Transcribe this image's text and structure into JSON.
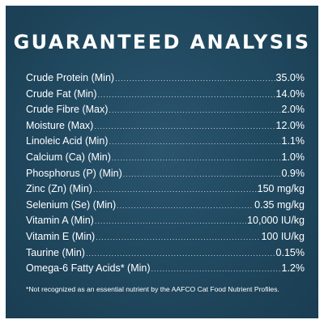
{
  "title": "GUARANTEED ANALYSIS",
  "rows": [
    {
      "label": "Crude Protein (Min)",
      "value": "35.0%"
    },
    {
      "label": "Crude Fat (Min)",
      "value": "14.0%"
    },
    {
      "label": "Crude Fibre (Max)",
      "value": "2.0%"
    },
    {
      "label": "Moisture (Max)",
      "value": "12.0%"
    },
    {
      "label": "Linoleic Acid (Min)",
      "value": "1.1%"
    },
    {
      "label": "Calcium (Ca) (Min)",
      "value": "1.0%"
    },
    {
      "label": "Phosphorus (P) (Min)",
      "value": "0.9%"
    },
    {
      "label": "Zinc (Zn) (Min)",
      "value": "150 mg/kg"
    },
    {
      "label": "Selenium (Se) (Min)",
      "value": "0.35 mg/kg"
    },
    {
      "label": "Vitamin A (Min)",
      "value": "10,000 IU/kg"
    },
    {
      "label": "Vitamin E (Min)",
      "value": "100 IU/kg"
    },
    {
      "label": "Taurine (Min)",
      "value": "0.15%"
    },
    {
      "label": "Omega-6 Fatty Acids* (Min)",
      "value": "1.2%"
    }
  ],
  "footnote": "*Not recognized as an essential nutrient by the AAFCO Cat Food Nutrient Profiles.",
  "colors": {
    "panel_background": "#214a61",
    "text": "#ffffff",
    "page_background": "#ffffff"
  }
}
